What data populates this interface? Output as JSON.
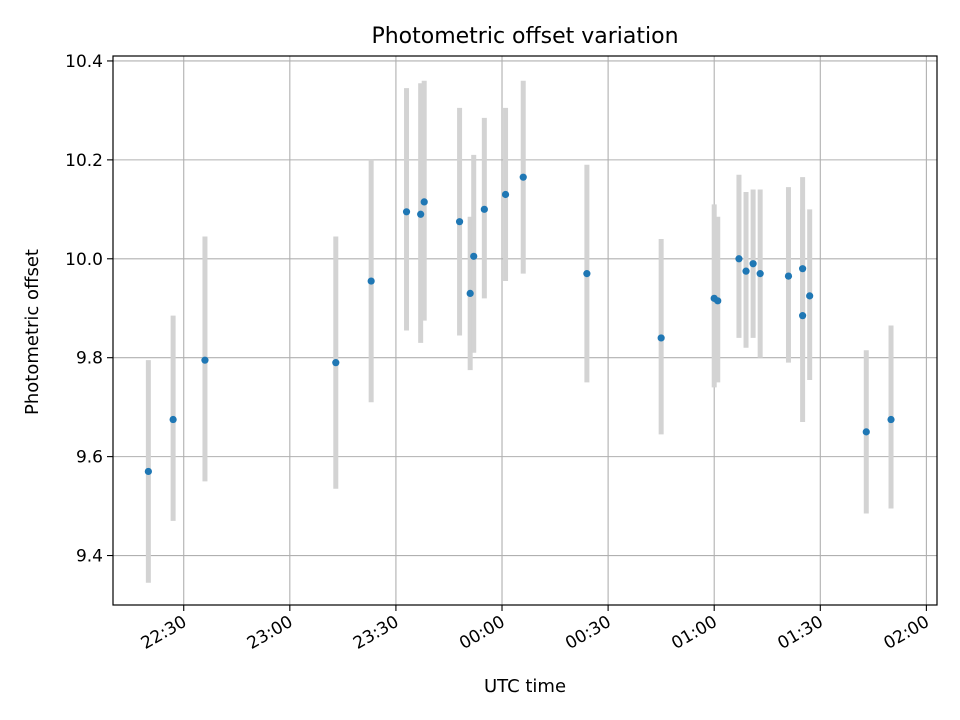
{
  "chart_data": {
    "type": "scatter",
    "title": "Photometric offset variation",
    "xlabel": "UTC time",
    "ylabel": "Photometric offset",
    "x_axis_kind": "time",
    "xlim": [
      "22:10",
      "02:03"
    ],
    "ylim": [
      9.3,
      10.41
    ],
    "x_ticks": [
      "22:30",
      "23:00",
      "23:30",
      "00:00",
      "00:30",
      "01:00",
      "01:30",
      "02:00"
    ],
    "y_ticks": [
      9.4,
      9.6,
      9.8,
      10.0,
      10.2,
      10.4
    ],
    "y_tick_labels": [
      "9.4",
      "9.6",
      "9.8",
      "10.0",
      "10.2",
      "10.4"
    ],
    "grid": true,
    "point_color": "#1f77b4",
    "errorbar_color": "#d3d3d3",
    "series": [
      {
        "x": [
          "22:20",
          "22:27",
          "22:36",
          "23:13",
          "23:23",
          "23:33",
          "23:37",
          "23:38",
          "23:48",
          "23:51",
          "23:52",
          "23:55",
          "00:01",
          "00:06",
          "00:24",
          "00:45",
          "01:00",
          "01:01",
          "01:07",
          "01:09",
          "01:11",
          "01:13",
          "01:21",
          "01:25",
          "01:25",
          "01:27",
          "01:43",
          "01:50"
        ],
        "y": [
          9.57,
          9.675,
          9.795,
          9.79,
          9.955,
          10.095,
          10.09,
          10.115,
          10.075,
          9.93,
          10.005,
          10.1,
          10.13,
          10.165,
          9.97,
          9.84,
          9.92,
          9.915,
          10.0,
          9.975,
          9.99,
          9.97,
          9.965,
          9.98,
          9.885,
          9.925,
          9.65,
          9.675
        ],
        "yerr_low": [
          9.345,
          9.47,
          9.55,
          9.535,
          9.71,
          9.855,
          9.83,
          9.875,
          9.845,
          9.775,
          9.81,
          9.92,
          9.955,
          9.97,
          9.75,
          9.645,
          9.74,
          9.75,
          9.84,
          9.82,
          9.84,
          9.8,
          9.79,
          9.8,
          9.67,
          9.755,
          9.485,
          9.495
        ],
        "yerr_high": [
          9.795,
          9.885,
          10.045,
          10.045,
          10.2,
          10.345,
          10.355,
          10.36,
          10.305,
          10.085,
          10.21,
          10.285,
          10.305,
          10.36,
          10.19,
          10.04,
          10.11,
          10.085,
          10.17,
          10.135,
          10.14,
          10.14,
          10.145,
          10.165,
          10.1,
          10.1,
          9.815,
          9.865
        ]
      }
    ]
  }
}
